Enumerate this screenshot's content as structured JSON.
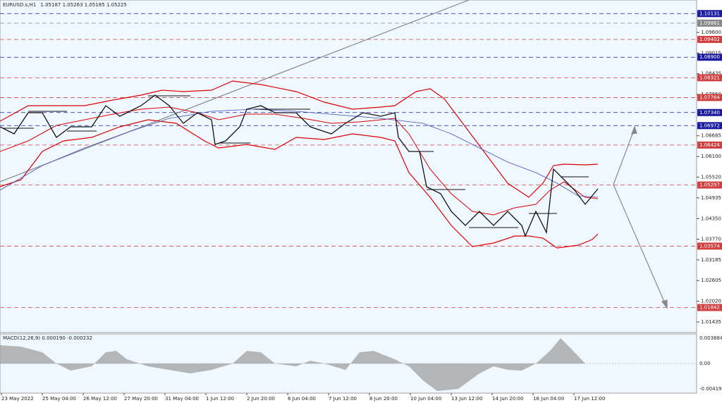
{
  "header": {
    "symbol": "EURUSD.s,H1",
    "ohlc": "1.05187 1.05263 1.05185 1.05225"
  },
  "price_axis": [
    "1.09600",
    "1.09015",
    "1.08435",
    "1.07850",
    "1.06685",
    "1.06100",
    "1.05520",
    "1.04935",
    "1.04350",
    "1.03770",
    "1.03185",
    "1.02605",
    "1.02020",
    "1.01435"
  ],
  "levels": [
    {
      "label": "1.10131",
      "color": "blue"
    },
    {
      "label": "1.09861",
      "color": "gray"
    },
    {
      "label": "1.09402",
      "color": "red"
    },
    {
      "label": "1.08900",
      "color": "blue"
    },
    {
      "label": "1.08321",
      "color": "red"
    },
    {
      "label": "1.07764",
      "color": "red"
    },
    {
      "label": "1.07340",
      "color": "blue"
    },
    {
      "label": "1.06972",
      "color": "blue"
    },
    {
      "label": "1.06424",
      "color": "red"
    },
    {
      "label": "1.05297",
      "color": "red"
    },
    {
      "label": "1.03574",
      "color": "red"
    },
    {
      "label": "1.01842",
      "color": "red"
    }
  ],
  "time_axis": [
    "23 May 2022",
    "25 May 04:00",
    "26 May 12:00",
    "27 May 20:00",
    "31 May 04:00",
    "1 Jun 12:00",
    "2 Jun 20:00",
    "6 Jun 04:00",
    "7 Jun 12:00",
    "8 Jun 20:00",
    "10 Jun 04:00",
    "13 Jun 12:00",
    "14 Jun 20:00",
    "16 Jun 04:00",
    "17 Jun 12:00"
  ],
  "macd": {
    "label": "MACD(12,26,9) 0.000190 -0.000232",
    "axis": [
      "0.003884",
      "0.00",
      "-0.004191"
    ]
  }
}
